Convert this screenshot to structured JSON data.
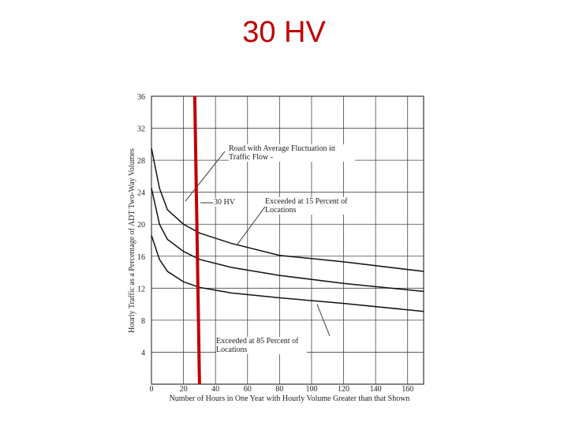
{
  "chart_data": {
    "type": "line",
    "title": "30 HV",
    "x_label": "Number of Hours in One Year with Hourly Volume Greater than that Shown",
    "y_label": "Hourly Traffic as a Percentage of ADT Two-Way Volumes",
    "x": [
      0,
      5,
      10,
      20,
      30,
      50,
      80,
      120,
      170
    ],
    "series": [
      {
        "name": "Exceeded at 15 Percent of Locations",
        "color": "#111111",
        "values": [
          29.5,
          24.5,
          21.8,
          20,
          18.9,
          17.6,
          16.1,
          15.3,
          14.1
        ]
      },
      {
        "name": "Road with Average Fluctuation in Traffic Flow -",
        "color": "#111111",
        "values": [
          24.5,
          20,
          18.1,
          16.6,
          15.6,
          14.6,
          13.6,
          12.6,
          11.6
        ]
      },
      {
        "name": "Exceeded at 85 Percent of Locations",
        "color": "#111111",
        "values": [
          18.6,
          15.6,
          14.1,
          12.8,
          12.1,
          11.4,
          10.8,
          10.1,
          9.1
        ]
      }
    ],
    "marker_line": {
      "x": 30,
      "label": "30 HV",
      "color": "#c00000"
    },
    "xlim": [
      0,
      170
    ],
    "ylim": [
      0,
      36
    ],
    "xticks": [
      0,
      20,
      40,
      60,
      80,
      100,
      120,
      140,
      160
    ],
    "yticks": [
      4,
      8,
      12,
      16,
      20,
      24,
      28,
      32,
      36
    ],
    "grid": true
  }
}
